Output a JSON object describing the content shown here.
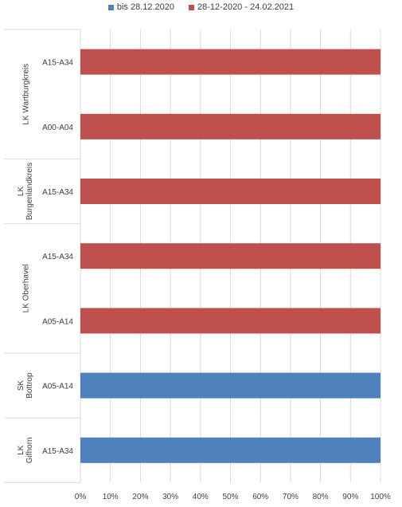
{
  "colors": {
    "series1": "#4F81BD",
    "series2": "#C0504D",
    "grid": "#D9D9D9",
    "text": "#404040"
  },
  "chart_data": {
    "type": "bar",
    "orientation": "horizontal",
    "stacked": "100%",
    "legend_position": "top",
    "xlim": [
      0,
      100
    ],
    "x_ticks": [
      "0%",
      "10%",
      "20%",
      "30%",
      "40%",
      "50%",
      "60%",
      "70%",
      "80%",
      "90%",
      "100%"
    ],
    "groups": [
      {
        "name": "LK Wartburgkreis",
        "rows": [
          "A15-A34",
          "A00-A04"
        ]
      },
      {
        "name": "LK Burgenlandkreis",
        "rows": [
          "A15-A34"
        ]
      },
      {
        "name": "LK Oberhavel",
        "rows": [
          "A15-A34",
          "A05-A14"
        ]
      },
      {
        "name": "SK Bottrop",
        "rows": [
          "A05-A14"
        ]
      },
      {
        "name": "LK Gifhorn",
        "rows": [
          "A15-A34"
        ]
      }
    ],
    "categories": [
      "LK Wartburgkreis / A15-A34",
      "LK Wartburgkreis / A00-A04",
      "LK Burgenlandkreis / A15-A34",
      "LK Oberhavel / A15-A34",
      "LK Oberhavel / A05-A14",
      "SK Bottrop / A05-A14",
      "LK Gifhorn / A15-A34"
    ],
    "series": [
      {
        "name": "bis 28.12.2020",
        "values": [
          0,
          0,
          0,
          0,
          0,
          100,
          100
        ]
      },
      {
        "name": "28-12-2020 - 24.02.2021",
        "values": [
          100,
          100,
          100,
          100,
          100,
          0,
          0
        ]
      }
    ]
  }
}
